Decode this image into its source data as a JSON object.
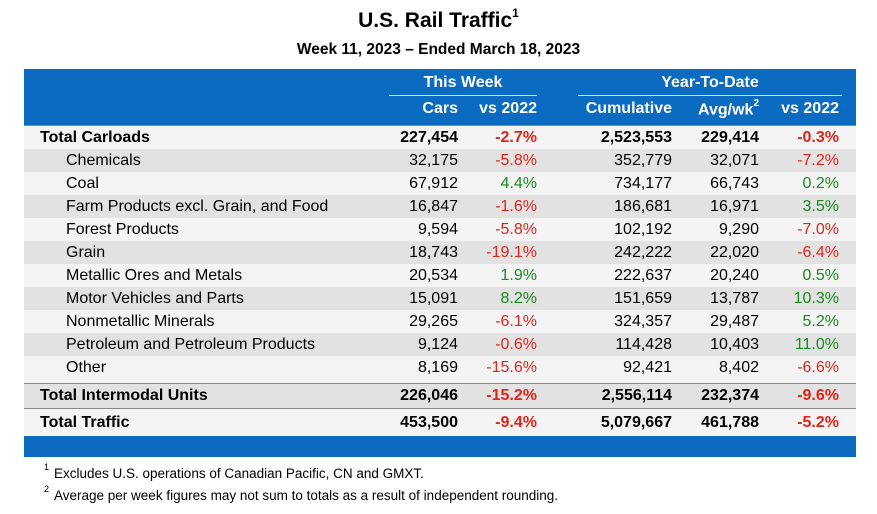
{
  "title": "U.S. Rail Traffic",
  "title_footnote_mark": "1",
  "subtitle": "Week 11, 2023 – Ended March 18, 2023",
  "header": {
    "this_week": "This Week",
    "ytd": "Year-To-Date",
    "cars": "Cars",
    "vs2022_week": "vs 2022",
    "cumulative": "Cumulative",
    "avg_wk": "Avg/wk",
    "avg_wk_mark": "2",
    "vs2022_ytd": "vs 2022"
  },
  "rows": [
    {
      "label": "Total Carloads",
      "cars": "227,454",
      "wk": "-2.7%",
      "cum": "2,523,553",
      "avg": "229,414",
      "ytd": "-0.3%"
    },
    {
      "label": "Chemicals",
      "cars": "32,175",
      "wk": "-5.8%",
      "cum": "352,779",
      "avg": "32,071",
      "ytd": "-7.2%"
    },
    {
      "label": "Coal",
      "cars": "67,912",
      "wk": "4.4%",
      "cum": "734,177",
      "avg": "66,743",
      "ytd": "0.2%"
    },
    {
      "label": "Farm Products excl. Grain, and Food",
      "cars": "16,847",
      "wk": "-1.6%",
      "cum": "186,681",
      "avg": "16,971",
      "ytd": "3.5%"
    },
    {
      "label": "Forest Products",
      "cars": "9,594",
      "wk": "-5.8%",
      "cum": "102,192",
      "avg": "9,290",
      "ytd": "-7.0%"
    },
    {
      "label": "Grain",
      "cars": "18,743",
      "wk": "-19.1%",
      "cum": "242,222",
      "avg": "22,020",
      "ytd": "-6.4%"
    },
    {
      "label": "Metallic Ores and Metals",
      "cars": "20,534",
      "wk": "1.9%",
      "cum": "222,637",
      "avg": "20,240",
      "ytd": "0.5%"
    },
    {
      "label": "Motor Vehicles and Parts",
      "cars": "15,091",
      "wk": "8.2%",
      "cum": "151,659",
      "avg": "13,787",
      "ytd": "10.3%"
    },
    {
      "label": "Nonmetallic Minerals",
      "cars": "29,265",
      "wk": "-6.1%",
      "cum": "324,357",
      "avg": "29,487",
      "ytd": "5.2%"
    },
    {
      "label": "Petroleum and Petroleum Products",
      "cars": "9,124",
      "wk": "-0.6%",
      "cum": "114,428",
      "avg": "10,403",
      "ytd": "11.0%"
    },
    {
      "label": "Other",
      "cars": "8,169",
      "wk": "-15.6%",
      "cum": "92,421",
      "avg": "8,402",
      "ytd": "-6.6%"
    },
    {
      "label": "Total Intermodal Units",
      "cars": "226,046",
      "wk": "-15.2%",
      "cum": "2,556,114",
      "avg": "232,374",
      "ytd": "-9.6%"
    },
    {
      "label": "Total Traffic",
      "cars": "453,500",
      "wk": "-9.4%",
      "cum": "5,079,667",
      "avg": "461,788",
      "ytd": "-5.2%"
    }
  ],
  "footnotes": [
    {
      "mark": "1",
      "text": "Excludes U.S. operations of Canadian Pacific, CN and GMXT."
    },
    {
      "mark": "2",
      "text": "Average per week figures may not sum to totals as a result of independent rounding."
    }
  ],
  "colors": {
    "header_blue": "#0b6bc1",
    "negative": "#e2231a",
    "positive": "#198a1e"
  }
}
